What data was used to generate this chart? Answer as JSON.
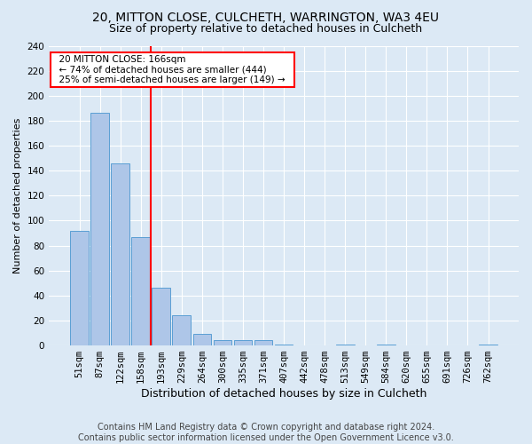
{
  "title1": "20, MITTON CLOSE, CULCHETH, WARRINGTON, WA3 4EU",
  "title2": "Size of property relative to detached houses in Culcheth",
  "xlabel": "Distribution of detached houses by size in Culcheth",
  "ylabel": "Number of detached properties",
  "footer": "Contains HM Land Registry data © Crown copyright and database right 2024.\nContains public sector information licensed under the Open Government Licence v3.0.",
  "bar_labels": [
    "51sqm",
    "87sqm",
    "122sqm",
    "158sqm",
    "193sqm",
    "229sqm",
    "264sqm",
    "300sqm",
    "335sqm",
    "371sqm",
    "407sqm",
    "442sqm",
    "478sqm",
    "513sqm",
    "549sqm",
    "584sqm",
    "620sqm",
    "655sqm",
    "691sqm",
    "726sqm",
    "762sqm"
  ],
  "bar_values": [
    92,
    186,
    146,
    87,
    46,
    24,
    9,
    4,
    4,
    4,
    1,
    0,
    0,
    1,
    0,
    1,
    0,
    0,
    0,
    0,
    1
  ],
  "bar_color": "#aec6e8",
  "bar_edge_color": "#5a9fd4",
  "vline_x": 3.5,
  "vline_color": "red",
  "annotation_text": "  20 MITTON CLOSE: 166sqm  \n  ← 74% of detached houses are smaller (444)  \n  25% of semi-detached houses are larger (149) →  ",
  "annotation_box_color": "white",
  "annotation_box_edge_color": "red",
  "ylim": [
    0,
    240
  ],
  "yticks": [
    0,
    20,
    40,
    60,
    80,
    100,
    120,
    140,
    160,
    180,
    200,
    220,
    240
  ],
  "bg_color": "#dce9f5",
  "plot_bg_color": "#dce9f5",
  "grid_color": "white",
  "title1_fontsize": 10,
  "title2_fontsize": 9,
  "xlabel_fontsize": 9,
  "ylabel_fontsize": 8,
  "tick_fontsize": 7.5,
  "footer_fontsize": 7
}
